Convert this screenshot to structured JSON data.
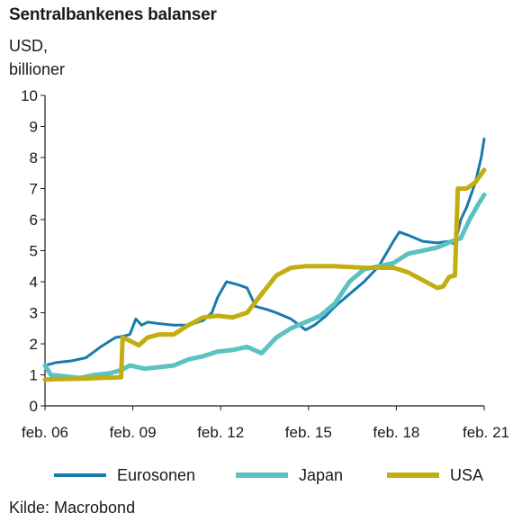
{
  "chart_data": {
    "type": "line",
    "title": "Sentralbankenes balanser",
    "ylabel_line1": "USD,",
    "ylabel_line2": "billioner",
    "source": "Kilde: Macrobond",
    "ylim": [
      0,
      10
    ],
    "yticks": [
      0,
      1,
      2,
      3,
      4,
      5,
      6,
      7,
      8,
      9,
      10
    ],
    "xlim": [
      2006.1,
      2021.1
    ],
    "xticks": [
      {
        "x": 2006.1,
        "label": "feb. 06"
      },
      {
        "x": 2009.1,
        "label": "feb. 09"
      },
      {
        "x": 2012.1,
        "label": "feb. 12"
      },
      {
        "x": 2015.1,
        "label": "feb. 15"
      },
      {
        "x": 2018.1,
        "label": "feb. 18"
      },
      {
        "x": 2021.1,
        "label": "feb. 21"
      }
    ],
    "grid": false,
    "legend_position": "bottom",
    "series": [
      {
        "name": "Eurosonen",
        "color": "#1a7aae",
        "width": 3,
        "points": [
          [
            2006.1,
            1.3
          ],
          [
            2006.5,
            1.4
          ],
          [
            2007.0,
            1.45
          ],
          [
            2007.5,
            1.55
          ],
          [
            2008.0,
            1.9
          ],
          [
            2008.5,
            2.2
          ],
          [
            2008.8,
            2.25
          ],
          [
            2009.0,
            2.3
          ],
          [
            2009.2,
            2.8
          ],
          [
            2009.4,
            2.6
          ],
          [
            2009.6,
            2.7
          ],
          [
            2010.0,
            2.65
          ],
          [
            2010.5,
            2.6
          ],
          [
            2011.0,
            2.6
          ],
          [
            2011.5,
            2.75
          ],
          [
            2011.8,
            3.0
          ],
          [
            2012.0,
            3.5
          ],
          [
            2012.3,
            4.0
          ],
          [
            2012.7,
            3.9
          ],
          [
            2013.0,
            3.8
          ],
          [
            2013.3,
            3.2
          ],
          [
            2013.7,
            3.1
          ],
          [
            2014.0,
            3.0
          ],
          [
            2014.5,
            2.8
          ],
          [
            2015.0,
            2.45
          ],
          [
            2015.3,
            2.6
          ],
          [
            2015.7,
            2.9
          ],
          [
            2016.0,
            3.2
          ],
          [
            2016.5,
            3.6
          ],
          [
            2017.0,
            4.0
          ],
          [
            2017.5,
            4.5
          ],
          [
            2018.0,
            5.3
          ],
          [
            2018.2,
            5.6
          ],
          [
            2018.5,
            5.5
          ],
          [
            2019.0,
            5.3
          ],
          [
            2019.5,
            5.25
          ],
          [
            2019.9,
            5.3
          ],
          [
            2020.1,
            5.2
          ],
          [
            2020.3,
            6.0
          ],
          [
            2020.5,
            6.4
          ],
          [
            2020.8,
            7.2
          ],
          [
            2021.0,
            8.0
          ],
          [
            2021.1,
            8.6
          ]
        ]
      },
      {
        "name": "Japan",
        "color": "#5bc2c0",
        "width": 5,
        "points": [
          [
            2006.1,
            1.3
          ],
          [
            2006.3,
            1.0
          ],
          [
            2006.8,
            0.95
          ],
          [
            2007.3,
            0.9
          ],
          [
            2007.8,
            1.0
          ],
          [
            2008.3,
            1.05
          ],
          [
            2008.7,
            1.15
          ],
          [
            2009.0,
            1.3
          ],
          [
            2009.5,
            1.2
          ],
          [
            2010.0,
            1.25
          ],
          [
            2010.5,
            1.3
          ],
          [
            2011.0,
            1.5
          ],
          [
            2011.5,
            1.6
          ],
          [
            2012.0,
            1.75
          ],
          [
            2012.5,
            1.8
          ],
          [
            2013.0,
            1.9
          ],
          [
            2013.5,
            1.7
          ],
          [
            2014.0,
            2.2
          ],
          [
            2014.5,
            2.5
          ],
          [
            2015.0,
            2.7
          ],
          [
            2015.5,
            2.9
          ],
          [
            2016.0,
            3.3
          ],
          [
            2016.5,
            4.0
          ],
          [
            2017.0,
            4.4
          ],
          [
            2017.5,
            4.5
          ],
          [
            2018.0,
            4.6
          ],
          [
            2018.5,
            4.9
          ],
          [
            2019.0,
            5.0
          ],
          [
            2019.5,
            5.1
          ],
          [
            2020.0,
            5.3
          ],
          [
            2020.3,
            5.4
          ],
          [
            2020.6,
            6.0
          ],
          [
            2020.9,
            6.5
          ],
          [
            2021.1,
            6.8
          ]
        ]
      },
      {
        "name": "USA",
        "color": "#c2ae10",
        "width": 5,
        "points": [
          [
            2006.1,
            0.85
          ],
          [
            2006.5,
            0.86
          ],
          [
            2007.0,
            0.87
          ],
          [
            2007.5,
            0.88
          ],
          [
            2008.0,
            0.9
          ],
          [
            2008.7,
            0.92
          ],
          [
            2008.75,
            2.2
          ],
          [
            2009.0,
            2.1
          ],
          [
            2009.3,
            1.95
          ],
          [
            2009.6,
            2.2
          ],
          [
            2010.0,
            2.3
          ],
          [
            2010.5,
            2.3
          ],
          [
            2011.0,
            2.6
          ],
          [
            2011.5,
            2.85
          ],
          [
            2012.0,
            2.9
          ],
          [
            2012.5,
            2.85
          ],
          [
            2013.0,
            3.0
          ],
          [
            2013.5,
            3.6
          ],
          [
            2014.0,
            4.2
          ],
          [
            2014.5,
            4.45
          ],
          [
            2015.0,
            4.5
          ],
          [
            2016.0,
            4.5
          ],
          [
            2017.0,
            4.45
          ],
          [
            2017.5,
            4.45
          ],
          [
            2018.0,
            4.45
          ],
          [
            2018.5,
            4.3
          ],
          [
            2019.0,
            4.05
          ],
          [
            2019.5,
            3.8
          ],
          [
            2019.7,
            3.85
          ],
          [
            2019.9,
            4.15
          ],
          [
            2020.1,
            4.2
          ],
          [
            2020.2,
            7.0
          ],
          [
            2020.5,
            7.0
          ],
          [
            2020.8,
            7.2
          ],
          [
            2021.1,
            7.6
          ]
        ]
      }
    ]
  }
}
